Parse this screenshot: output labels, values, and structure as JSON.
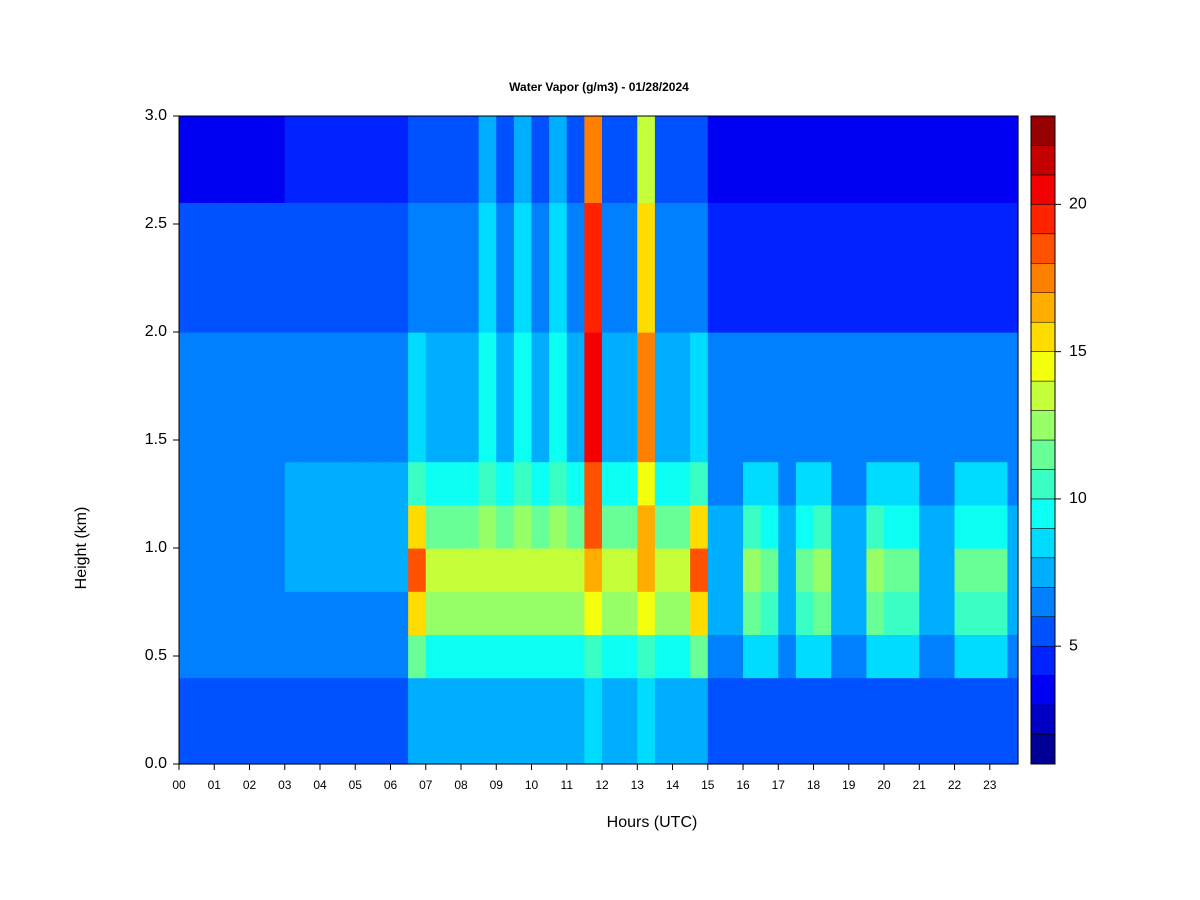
{
  "chart_data": {
    "type": "heatmap",
    "title": "Water Vapor (g/m3) - 01/28/2024",
    "xlabel": "Hours (UTC)",
    "ylabel": "Height (km)",
    "xlim": [
      0,
      23.8
    ],
    "ylim": [
      0,
      3
    ],
    "xticks": [
      {
        "value": 0,
        "label": "00"
      },
      {
        "value": 1,
        "label": "01"
      },
      {
        "value": 2,
        "label": "02"
      },
      {
        "value": 3,
        "label": "03"
      },
      {
        "value": 4,
        "label": "04"
      },
      {
        "value": 5,
        "label": "05"
      },
      {
        "value": 6,
        "label": "06"
      },
      {
        "value": 7,
        "label": "07"
      },
      {
        "value": 8,
        "label": "08"
      },
      {
        "value": 9,
        "label": "09"
      },
      {
        "value": 10,
        "label": "10"
      },
      {
        "value": 11,
        "label": "11"
      },
      {
        "value": 12,
        "label": "12"
      },
      {
        "value": 13,
        "label": "13"
      },
      {
        "value": 14,
        "label": "14"
      },
      {
        "value": 15,
        "label": "15"
      },
      {
        "value": 16,
        "label": "16"
      },
      {
        "value": 17,
        "label": "17"
      },
      {
        "value": 18,
        "label": "18"
      },
      {
        "value": 19,
        "label": "19"
      },
      {
        "value": 20,
        "label": "20"
      },
      {
        "value": 21,
        "label": "21"
      },
      {
        "value": 22,
        "label": "22"
      },
      {
        "value": 23,
        "label": "23"
      }
    ],
    "yticks": [
      {
        "value": 0,
        "label": "0.0"
      },
      {
        "value": 0.5,
        "label": "0.5"
      },
      {
        "value": 1,
        "label": "1.0"
      },
      {
        "value": 1.5,
        "label": "1.5"
      },
      {
        "value": 2,
        "label": "2.0"
      },
      {
        "value": 2.5,
        "label": "2.5"
      },
      {
        "value": 3,
        "label": "3.0"
      }
    ],
    "x_edges": [
      0,
      0.5,
      1,
      1.5,
      2,
      2.5,
      3,
      3.5,
      4,
      4.5,
      5,
      5.5,
      6,
      6.5,
      7,
      7.5,
      8,
      8.5,
      9,
      9.5,
      10,
      10.5,
      11,
      11.5,
      12,
      12.5,
      13,
      13.5,
      14,
      14.5,
      15,
      15.5,
      16,
      16.5,
      17,
      17.5,
      18,
      18.5,
      19,
      19.5,
      20,
      20.5,
      21,
      21.5,
      22,
      22.5,
      23,
      23.5,
      23.8
    ],
    "y_edges": [
      0,
      0.4,
      0.6,
      0.8,
      1.0,
      1.2,
      1.4,
      2.0,
      2.6,
      3.0
    ],
    "z": [
      [
        5,
        6,
        6,
        6,
        6,
        6,
        6,
        5,
        3
      ],
      [
        5,
        6,
        6,
        6,
        6,
        6,
        6,
        5,
        3
      ],
      [
        5,
        6,
        6,
        6,
        6,
        6,
        6,
        5,
        3
      ],
      [
        5,
        6,
        6,
        6,
        6,
        6,
        6,
        5,
        3
      ],
      [
        5,
        6,
        6,
        6,
        6,
        6,
        6,
        5,
        3
      ],
      [
        5,
        6,
        6,
        6,
        6,
        6,
        6,
        5,
        3
      ],
      [
        5,
        6,
        6,
        7,
        7,
        7,
        6,
        5,
        4
      ],
      [
        5,
        6,
        6,
        7,
        7,
        7,
        6,
        5,
        4
      ],
      [
        5,
        6,
        6,
        7,
        7,
        7,
        6,
        5,
        4
      ],
      [
        5,
        6,
        6,
        7,
        7,
        7,
        6,
        5,
        4
      ],
      [
        5,
        6,
        6,
        7,
        7,
        7,
        6,
        5,
        4
      ],
      [
        5,
        6,
        6,
        7,
        7,
        7,
        6,
        5,
        4
      ],
      [
        5,
        6,
        6,
        7,
        7,
        7,
        6,
        5,
        4
      ],
      [
        7,
        11,
        15,
        18,
        15,
        10,
        8,
        6,
        5
      ],
      [
        7,
        9,
        12,
        13,
        11,
        9,
        7,
        6,
        5
      ],
      [
        7,
        9,
        12,
        13,
        11,
        9,
        7,
        6,
        5
      ],
      [
        7,
        9,
        12,
        13,
        11,
        9,
        7,
        6,
        5
      ],
      [
        7,
        9,
        12,
        13,
        12,
        10,
        9,
        8,
        7
      ],
      [
        7,
        9,
        12,
        13,
        11,
        9,
        7,
        6,
        5
      ],
      [
        7,
        9,
        12,
        13,
        12,
        10,
        9,
        8,
        7
      ],
      [
        7,
        9,
        12,
        13,
        11,
        9,
        7,
        6,
        5
      ],
      [
        7,
        9,
        12,
        13,
        12,
        10,
        9,
        8,
        7
      ],
      [
        7,
        9,
        12,
        13,
        11,
        9,
        7,
        6,
        5
      ],
      [
        8,
        10,
        14,
        16,
        18,
        18,
        20,
        19,
        17
      ],
      [
        7,
        9,
        12,
        13,
        11,
        9,
        7,
        6,
        5
      ],
      [
        7,
        9,
        12,
        13,
        11,
        9,
        7,
        6,
        5
      ],
      [
        8,
        10,
        14,
        16,
        16,
        14,
        17,
        15,
        13
      ],
      [
        7,
        9,
        12,
        13,
        11,
        9,
        7,
        6,
        5
      ],
      [
        7,
        9,
        12,
        13,
        11,
        9,
        7,
        6,
        5
      ],
      [
        7,
        11,
        15,
        18,
        15,
        10,
        8,
        6,
        5
      ],
      [
        5,
        6,
        7,
        7,
        7,
        6,
        6,
        4,
        3
      ],
      [
        5,
        6,
        7,
        7,
        7,
        6,
        6,
        4,
        3
      ],
      [
        5,
        8,
        11,
        12,
        10,
        8,
        6,
        4,
        3
      ],
      [
        5,
        8,
        10,
        11,
        9,
        8,
        6,
        4,
        3
      ],
      [
        5,
        6,
        7,
        7,
        7,
        6,
        6,
        4,
        3
      ],
      [
        5,
        8,
        10,
        11,
        9,
        8,
        6,
        4,
        3
      ],
      [
        5,
        8,
        11,
        12,
        10,
        8,
        6,
        4,
        3
      ],
      [
        5,
        6,
        7,
        7,
        7,
        6,
        6,
        4,
        3
      ],
      [
        5,
        6,
        7,
        7,
        7,
        6,
        6,
        4,
        3
      ],
      [
        5,
        8,
        11,
        12,
        10,
        8,
        6,
        4,
        3
      ],
      [
        5,
        8,
        10,
        11,
        9,
        8,
        6,
        4,
        3
      ],
      [
        5,
        8,
        10,
        11,
        9,
        8,
        6,
        4,
        3
      ],
      [
        5,
        6,
        7,
        7,
        7,
        6,
        6,
        4,
        3
      ],
      [
        5,
        6,
        7,
        7,
        7,
        6,
        6,
        4,
        3
      ],
      [
        5,
        8,
        10,
        11,
        9,
        8,
        6,
        4,
        3
      ],
      [
        5,
        8,
        10,
        11,
        9,
        8,
        6,
        4,
        3
      ],
      [
        5,
        8,
        10,
        11,
        9,
        8,
        6,
        4,
        3
      ],
      [
        5,
        6,
        7,
        7,
        7,
        6,
        6,
        4,
        3
      ]
    ],
    "colormap": "jet",
    "levels": [
      1,
      2,
      3,
      4,
      5,
      6,
      7,
      8,
      9,
      10,
      11,
      12,
      13,
      14,
      15,
      16,
      17,
      18,
      19,
      20,
      21,
      22,
      23
    ],
    "zticks": [
      5,
      10,
      15,
      20
    ]
  }
}
